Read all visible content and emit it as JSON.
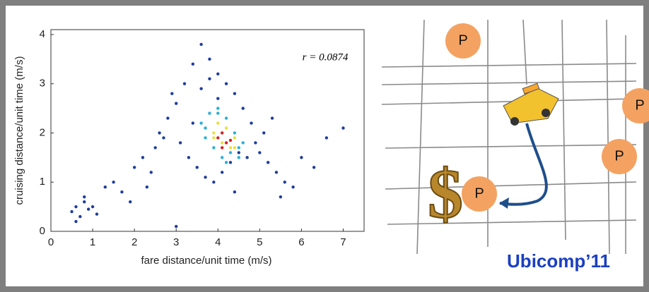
{
  "chart_data": {
    "type": "scatter",
    "xlabel": "fare distance/unit time (m/s)",
    "ylabel": "cruising distance/unit time (m/s)",
    "annotation": "r = 0.0874",
    "xlim": [
      0,
      7.5
    ],
    "ylim": [
      0,
      4.1
    ],
    "xticks": [
      0,
      1,
      2,
      3,
      4,
      5,
      6,
      7
    ],
    "yticks": [
      0,
      1,
      2,
      3,
      4
    ],
    "series": [
      {
        "color": "#1f3d9e",
        "x": [
          0.5,
          0.6,
          0.7,
          0.8,
          0.9,
          1.0,
          1.1,
          0.6,
          0.8,
          1.3,
          1.5,
          1.7,
          2.0,
          2.2,
          2.4,
          2.6,
          2.8,
          3.0,
          3.2,
          3.4,
          3.6,
          3.8,
          4.0,
          4.2,
          4.4,
          4.6,
          4.8,
          5.0,
          5.2,
          5.4,
          5.6,
          5.8,
          6.0,
          6.3,
          6.6,
          7.0,
          3.1,
          3.3,
          3.5,
          3.7,
          3.9,
          4.1,
          4.3,
          4.5,
          4.7,
          4.9,
          5.1,
          2.9,
          2.7,
          3.6,
          3.8,
          4.0,
          1.9,
          2.3,
          2.5,
          5.5,
          5.3,
          4.4,
          3.0,
          3.4
        ],
        "y": [
          0.4,
          0.5,
          0.3,
          0.6,
          0.45,
          0.5,
          0.35,
          0.2,
          0.7,
          0.9,
          1.0,
          0.8,
          1.3,
          1.5,
          1.2,
          2.0,
          2.3,
          2.6,
          3.0,
          3.4,
          3.8,
          3.5,
          3.2,
          3.0,
          2.8,
          2.5,
          2.2,
          1.6,
          1.4,
          1.2,
          1.0,
          0.9,
          1.5,
          1.3,
          1.9,
          2.1,
          1.8,
          1.5,
          1.3,
          1.1,
          1.0,
          1.2,
          1.4,
          1.6,
          1.5,
          1.8,
          2.0,
          2.8,
          1.9,
          2.9,
          3.1,
          2.7,
          0.6,
          0.9,
          1.7,
          0.7,
          2.3,
          0.8,
          0.1,
          2.2
        ]
      },
      {
        "color": "#2ab0d8",
        "x": [
          3.6,
          3.7,
          3.8,
          3.9,
          4.0,
          4.1,
          4.2,
          4.3,
          4.4,
          4.5,
          4.6,
          3.7,
          4.5,
          4.0,
          4.2
        ],
        "y": [
          2.2,
          1.9,
          2.4,
          1.7,
          2.4,
          1.5,
          2.3,
          1.6,
          2.0,
          1.7,
          1.8,
          2.1,
          1.5,
          2.5,
          1.4
        ]
      },
      {
        "color": "#e8e040",
        "x": [
          3.9,
          4.0,
          4.1,
          4.2,
          4.3,
          4.4,
          3.9,
          4.4
        ],
        "y": [
          2.0,
          2.2,
          1.8,
          2.1,
          1.7,
          1.9,
          1.9,
          1.7
        ]
      },
      {
        "color": "#d62020",
        "x": [
          4.0,
          4.1,
          4.2,
          4.3,
          4.1
        ],
        "y": [
          1.9,
          2.0,
          1.8,
          1.85,
          1.7
        ]
      }
    ]
  },
  "illustration": {
    "markers": [
      "P",
      "P",
      "P",
      "P"
    ],
    "caption": "Ubicomp’11"
  }
}
